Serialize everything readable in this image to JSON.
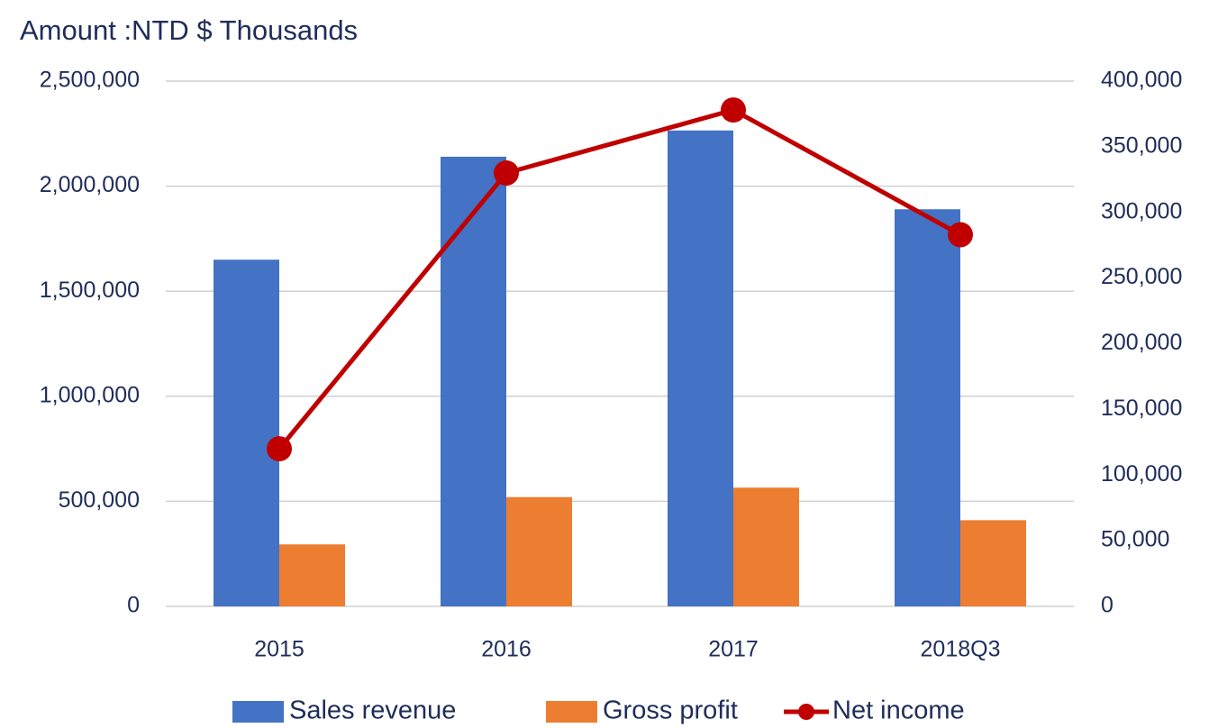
{
  "chart_data": {
    "type": "bar",
    "title": "Amount :NTD $ Thousands",
    "categories": [
      "2015",
      "2016",
      "2017",
      "2018Q3"
    ],
    "series": [
      {
        "name": "Sales revenue",
        "type": "bar",
        "color": "#4472c4",
        "values": [
          1650000,
          2140000,
          2265000,
          1890000
        ]
      },
      {
        "name": "Gross profit",
        "type": "bar",
        "color": "#ed7d31",
        "values": [
          295000,
          520000,
          565000,
          410000
        ]
      },
      {
        "name": "Net income",
        "type": "line",
        "axis": "y2",
        "color": "#c00000",
        "values": [
          120000,
          330000,
          378000,
          283000
        ]
      }
    ],
    "ylim": [
      0,
      2500000
    ],
    "yticks": [
      0,
      {
        "value": 500000,
        "label": "500,000"
      },
      {
        "value": 1000000,
        "label": "1,000,000"
      },
      {
        "value": 1500000,
        "label": "1,500,000"
      },
      {
        "value": 2000000,
        "label": "2,000,000"
      },
      {
        "value": 2500000,
        "label": "2,500,000"
      }
    ],
    "y2lim": [
      0,
      400000
    ],
    "y2ticks": [
      0,
      {
        "value": 50000,
        "label": "50,000"
      },
      {
        "value": 100000,
        "label": "100,000"
      },
      {
        "value": 150000,
        "label": "150,000"
      },
      {
        "value": 200000,
        "label": "200,000"
      },
      {
        "value": 250000,
        "label": "250,000"
      },
      {
        "value": 300000,
        "label": "300,000"
      },
      {
        "value": 350000,
        "label": "350,000"
      },
      {
        "value": 400000,
        "label": "400,000"
      }
    ],
    "grid": true,
    "legend": "bottom"
  }
}
